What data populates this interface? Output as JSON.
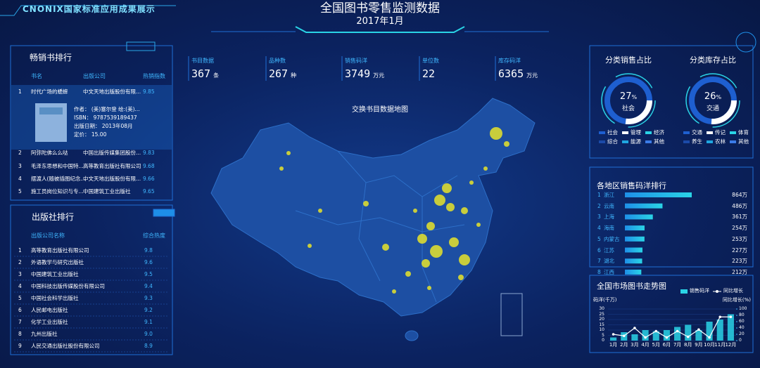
{
  "header": {
    "brand": "CNONIX国家标准应用成果展示",
    "title": "全国图书零售监测数据",
    "subtitle": "2017年1月"
  },
  "bestsellers": {
    "title": "畅销书排行",
    "columns": [
      "书名",
      "出版公司",
      "热销指数"
    ],
    "rows": [
      [
        "1",
        "时代广场的蟋蟀",
        "中文天地出版股份有限...",
        "9.85"
      ],
      [
        "2",
        "阿弥陀佛么么哒",
        "中国出版传媒集团股份...",
        "9.83"
      ],
      [
        "3",
        "毛泽东思想和中国特...",
        "高等教育出版社有限公司",
        "9.68"
      ],
      [
        "4",
        "摆渡人(随被插图纪念...",
        "中文天地出版股份有限...",
        "9.66"
      ],
      [
        "5",
        "施工员岗位知识与专...",
        "中国建筑工业出版社",
        "9.65"
      ]
    ],
    "detail": {
      "author": "作者：  (美)塞尔登 绘:(美)...",
      "isbn": "ISBN：  9787539189437",
      "date": "出版日期：  2013年08月",
      "price": "定价：  15.00"
    }
  },
  "publishers": {
    "title": "出版社排行",
    "columns": [
      "出版公司名称",
      "综合热度"
    ],
    "rows": [
      [
        "1",
        "高等教育出版社有限公司",
        "9.8"
      ],
      [
        "2",
        "外语教学与研究出版社",
        "9.6"
      ],
      [
        "3",
        "中国建筑工业出版社",
        "9.5"
      ],
      [
        "4",
        "中国科技出版传媒股份有限公司",
        "9.4"
      ],
      [
        "5",
        "中国社会科学出版社",
        "9.3"
      ],
      [
        "6",
        "人民邮电出版社",
        "9.2"
      ],
      [
        "7",
        "化学工业出版社",
        "9.1"
      ],
      [
        "8",
        "九州出版社",
        "9.0"
      ],
      [
        "9",
        "人民交通出版社股份有限公司",
        "8.9"
      ]
    ]
  },
  "stats": [
    {
      "label": "书目数据",
      "value": 367,
      "unit": "条"
    },
    {
      "label": "品种数",
      "value": 267,
      "unit": "种"
    },
    {
      "label": "销售码洋",
      "value": 3749,
      "unit": "万元"
    },
    {
      "label": "单位数",
      "value": 22
    },
    {
      "label": "库存码洋",
      "value": 6365,
      "unit": "万元"
    }
  ],
  "map": {
    "title": "交换书目数据地图"
  },
  "ratios": [
    {
      "title": "分类销售占比",
      "value": 27,
      "unit": "%",
      "label": "社会",
      "legend": [
        {
          "name": "社会",
          "color": "#1e5fd0"
        },
        {
          "name": "管理",
          "color": "#ffffff"
        },
        {
          "name": "经济",
          "color": "#2ad4e6"
        },
        {
          "name": "综合",
          "color": "#1b4aa8"
        },
        {
          "name": "能源",
          "color": "#1fa6e0"
        },
        {
          "name": "其他",
          "color": "#3b7be8"
        }
      ]
    },
    {
      "title": "分类库存占比",
      "value": 26,
      "unit": "%",
      "label": "交通",
      "legend": [
        {
          "name": "交通",
          "color": "#1e5fd0"
        },
        {
          "name": "传记",
          "color": "#ffffff"
        },
        {
          "name": "体育",
          "color": "#2ad4e6"
        },
        {
          "name": "养生",
          "color": "#1b4aa8"
        },
        {
          "name": "农林",
          "color": "#1fa6e0"
        },
        {
          "name": "其他",
          "color": "#3b7be8"
        }
      ]
    }
  ],
  "regional": {
    "title": "各地区销售码洋排行",
    "ranks": [
      "1",
      "2",
      "3",
      "4",
      "5",
      "6",
      "7",
      "8"
    ],
    "categories": [
      "浙江",
      "云南",
      "上海",
      "海南",
      "内蒙古",
      "江苏",
      "湖北",
      "江西"
    ],
    "values": [
      864,
      486,
      361,
      254,
      253,
      227,
      223,
      212
    ],
    "value_labels": [
      "864万",
      "486万",
      "361万",
      "254万",
      "253万",
      "227万",
      "223万",
      "212万"
    ],
    "color": "#2ad4e6"
  },
  "trend": {
    "title": "全国市场图书走势图",
    "legend": [
      "销售码洋",
      "同比增长"
    ],
    "y_label": "码洋(千万)",
    "y2_label": "同比增长(%)",
    "categories": [
      "1月",
      "2月",
      "3月",
      "4月",
      "5月",
      "6月",
      "7月",
      "8月",
      "9月",
      "10月",
      "11月",
      "12月"
    ],
    "bars": [
      3,
      8,
      6,
      10,
      9,
      10,
      13,
      15,
      10,
      18,
      20,
      25
    ],
    "line": [
      20,
      15,
      40,
      10,
      30,
      10,
      30,
      12,
      35,
      10,
      75,
      75
    ],
    "ylim": [
      0,
      30
    ],
    "yticks": [
      0,
      5,
      10,
      15,
      20,
      25,
      30
    ],
    "y2lim": [
      0,
      100
    ],
    "y2ticks": [
      0,
      20,
      40,
      60,
      80,
      100
    ],
    "bar_color": "#2ad4e6",
    "line_color": "#ffffff"
  }
}
